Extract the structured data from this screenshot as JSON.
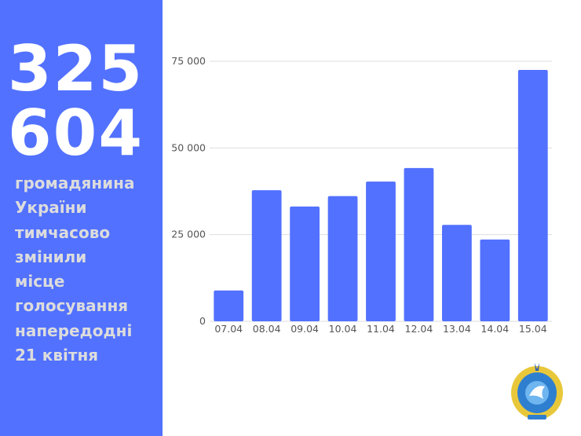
{
  "headline": {
    "number_line1": "325",
    "number_line2": "604",
    "lines": [
      "громадянина",
      "України",
      "тимчасово",
      "змінили",
      "місце",
      "голосування",
      "напередодні",
      "21 квітня"
    ]
  },
  "emblem": {
    "text": "Центральна виборча комісія Україна"
  },
  "colors": {
    "accent": "#5271ff",
    "text_light": "#dcdcdc"
  },
  "chart_data": {
    "type": "bar",
    "categories": [
      "07.04",
      "08.04",
      "09.04",
      "10.04",
      "11.04",
      "12.04",
      "13.04",
      "14.04",
      "15.04"
    ],
    "values": [
      8900,
      37800,
      33100,
      36100,
      40300,
      44200,
      27800,
      23600,
      72500
    ],
    "ylim": [
      0,
      75000
    ],
    "yticks": [
      0,
      25000,
      50000,
      75000
    ],
    "ytick_labels": [
      "0",
      "25 000",
      "50 000",
      "75 000"
    ],
    "grid": true,
    "bar_color": "#5271ff"
  }
}
